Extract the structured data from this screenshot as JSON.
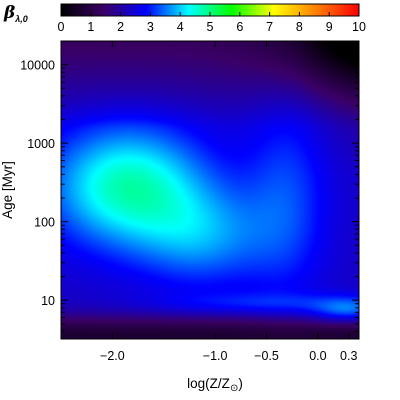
{
  "chart_data": {
    "type": "heatmap",
    "colorbar": {
      "title_symbol": "β",
      "title_subscript": "λ,0",
      "min": 0,
      "max": 10,
      "tick_labels": [
        "0",
        "1",
        "2",
        "3",
        "4",
        "5",
        "6",
        "7",
        "8",
        "9",
        "10"
      ],
      "colors": [
        "#000000",
        "#3a0066",
        "#0000ff",
        "#00ffff",
        "#00ff00",
        "#ffff00",
        "#ff7f00",
        "#ff0000"
      ]
    },
    "x_axis": {
      "label": "log(Z/Z",
      "label_symbol": "⊙",
      "label_close": ")",
      "range": [
        -2.5,
        0.4
      ],
      "ticks": [
        {
          "value": -2.0,
          "label": "−2.0"
        },
        {
          "value": -1.0,
          "label": "−1.0"
        },
        {
          "value": -0.5,
          "label": "−0.5"
        },
        {
          "value": 0.0,
          "label": "0.0"
        },
        {
          "value": 0.3,
          "label": "0.3"
        }
      ]
    },
    "y_axis": {
      "label": "Age [Myr]",
      "scale": "log",
      "range": [
        3.2,
        20000
      ],
      "ticks": [
        {
          "value": 10,
          "label": "10"
        },
        {
          "value": 100,
          "label": "100"
        },
        {
          "value": 1000,
          "label": "1000"
        },
        {
          "value": 10000,
          "label": "10000"
        }
      ]
    },
    "regions": [
      {
        "description": "peak",
        "x": -1.8,
        "y": 300,
        "value": 4.5
      },
      {
        "description": "upper metal-poor",
        "x": -2.2,
        "y": 3000,
        "value": 2.8
      },
      {
        "description": "top right corner",
        "x": 0.35,
        "y": 15000,
        "value": 0.6
      },
      {
        "description": "young ages",
        "x": -1.5,
        "y": 4.5,
        "value": 1.0
      },
      {
        "description": "young metal-rich band",
        "x": 0.3,
        "y": 7,
        "value": 3.5
      }
    ]
  }
}
